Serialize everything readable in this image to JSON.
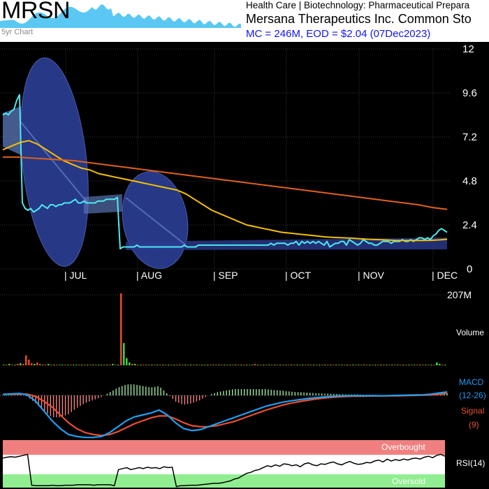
{
  "header": {
    "ticker": "MRSN",
    "mini_chart_label": "5yr Chart",
    "sector": "Health Care | Biotechnology: Pharmaceutical Prepara",
    "company": "Mersana Therapeutics Inc. Common Sto",
    "market_info": "MC = 246M, EOD = $2.04 (07Dec2023)"
  },
  "colors": {
    "background": "#000000",
    "price_line": "#4ee8f0",
    "ma_fast": "#f5c000",
    "ma_slow": "#e0601a",
    "band_fill": "#2a3b8f",
    "volume_down": "#e04a2a",
    "volume_up": "#40d040",
    "macd": "#1ea0f0",
    "signal": "#e85030",
    "hist_pos": "#9ee8a0",
    "hist_neg": "#f08080",
    "overbought": "#f08080",
    "oversold": "#90ee90"
  },
  "chart_data": {
    "type": "line",
    "price_panel": {
      "ylim": [
        0,
        12
      ],
      "yticks": [
        "12",
        "9.6",
        "7.2",
        "4.8",
        "2.4",
        "0"
      ],
      "x_labels": [
        "| JUL",
        "| AUG",
        "| SEP",
        "| OCT",
        "| NOV",
        "| DEC"
      ],
      "series": [
        {
          "key": "close",
          "values": [
            8.4,
            8.5,
            8.4,
            8.6,
            8.7,
            9.2,
            9.5,
            3.6,
            3.3,
            3.2,
            3.3,
            3.1,
            3.2,
            3.3,
            3.5,
            3.4,
            3.3,
            3.5,
            3.5,
            3.4,
            3.5,
            3.5,
            3.6,
            3.6,
            3.6,
            3.7,
            3.8,
            3.6,
            3.6,
            3.7,
            3.6,
            3.6,
            3.6,
            3.6,
            3.7,
            3.7,
            3.7,
            3.8,
            3.8,
            3.8,
            3.8,
            3.9,
            1.1,
            1.2,
            1.2,
            1.2,
            1.2,
            1.2,
            1.3,
            1.2,
            1.2,
            1.2,
            1.2,
            1.2,
            1.2,
            1.2,
            1.2,
            1.2,
            1.2,
            1.2,
            1.2,
            1.2,
            1.2,
            1.2,
            1.2,
            1.3,
            1.2,
            1.2,
            1.2,
            1.2,
            1.3,
            1.3,
            1.3,
            1.3,
            1.3,
            1.3,
            1.3,
            1.3,
            1.3,
            1.3,
            1.3,
            1.3,
            1.3,
            1.3,
            1.3,
            1.3,
            1.3,
            1.3,
            1.3,
            1.3,
            1.3,
            1.3,
            1.3,
            1.3,
            1.3,
            1.3,
            1.4,
            1.3,
            1.4,
            1.4,
            1.4,
            1.4,
            1.3,
            1.4,
            1.4,
            1.5,
            1.3,
            1.5,
            1.4,
            1.5,
            1.4,
            1.5,
            1.4,
            1.5,
            1.4,
            1.3,
            1.5,
            1.2,
            1.3,
            1.4,
            1.4,
            1.5,
            1.5,
            1.3,
            1.6,
            1.5,
            1.4,
            1.3,
            1.4,
            1.6,
            1.5,
            1.4,
            1.4,
            1.3,
            1.3,
            1.4,
            1.5,
            1.5,
            1.5,
            1.4,
            1.5,
            1.5,
            1.5,
            1.6,
            1.5,
            1.5,
            1.6,
            1.5,
            1.6,
            1.7,
            1.7,
            1.6,
            1.7,
            1.6,
            1.8,
            1.9,
            2.1,
            2.2,
            2.1,
            2.0
          ]
        },
        {
          "key": "ma_fast",
          "values": [
            6.5,
            6.7,
            6.9,
            7.0,
            6.8,
            6.5,
            6.2,
            5.9,
            5.7,
            5.5,
            5.4,
            5.2,
            5.1,
            5.0,
            4.9,
            4.8,
            4.7,
            4.6,
            4.5,
            4.4,
            4.3,
            4.1,
            3.8,
            3.5,
            3.2,
            3.0,
            2.8,
            2.6,
            2.4,
            2.3,
            2.2,
            2.1,
            2.0,
            1.95,
            1.9,
            1.85,
            1.8,
            1.75,
            1.72,
            1.7,
            1.68,
            1.65,
            1.62,
            1.6,
            1.58,
            1.56,
            1.55,
            1.55,
            1.55,
            1.56,
            1.58,
            1.62
          ]
        },
        {
          "key": "ma_slow",
          "values": [
            6.1,
            6.1,
            6.05,
            6.0,
            5.95,
            5.9,
            5.8,
            5.7,
            5.6,
            5.5,
            5.4,
            5.3,
            5.2,
            5.1,
            5.0,
            4.9,
            4.8,
            4.7,
            4.6,
            4.5,
            4.4,
            4.3,
            4.2,
            4.1,
            4.0,
            3.9,
            3.8,
            3.7,
            3.6,
            3.5,
            3.35,
            3.25
          ]
        }
      ]
    },
    "volume_panel": {
      "max_label": "207M",
      "label": "Volume",
      "values": [
        1,
        1,
        2,
        1,
        1,
        2,
        3,
        2,
        14,
        8,
        3,
        2,
        4,
        2,
        1,
        1,
        2,
        1,
        1,
        1,
        1,
        1,
        1,
        1,
        1,
        1,
        1,
        1,
        1,
        1,
        1,
        1,
        1,
        1,
        1,
        1,
        1,
        1,
        1,
        2,
        1,
        1,
        100,
        31,
        10,
        4,
        2,
        2,
        1,
        1,
        1,
        1,
        1,
        1,
        1,
        1,
        1,
        1,
        1,
        1,
        1,
        1,
        1,
        1,
        1,
        1,
        1,
        1,
        1,
        1,
        1,
        1,
        1,
        1,
        1,
        1,
        1,
        1,
        1,
        1,
        1,
        1,
        1,
        1,
        1,
        1,
        1,
        1,
        1,
        1,
        2,
        1,
        1,
        1,
        1,
        1,
        1,
        1,
        1,
        1,
        1,
        1,
        1,
        1,
        1,
        1,
        1,
        1,
        1,
        1,
        1,
        1,
        1,
        1,
        1,
        1,
        1,
        1,
        1,
        1,
        1,
        1,
        1,
        1,
        1,
        1,
        1,
        1,
        1,
        1,
        1,
        1,
        1,
        1,
        1,
        1,
        1,
        1,
        1,
        1,
        1,
        1,
        1,
        1,
        1,
        1,
        1,
        1,
        1,
        1,
        1,
        1,
        1,
        1,
        1,
        4,
        2,
        1,
        1
      ],
      "up": [
        1,
        0,
        1,
        0,
        1,
        0,
        1,
        0,
        0,
        0,
        0,
        1,
        0,
        0,
        1,
        0,
        1,
        0,
        1,
        0,
        1,
        1,
        0,
        1,
        0,
        1,
        1,
        0,
        1,
        0,
        1,
        0,
        1,
        0,
        1,
        1,
        0,
        1,
        0,
        1,
        0,
        1,
        0,
        1,
        1,
        1,
        0,
        1,
        0,
        1,
        0,
        1,
        0,
        1,
        0,
        1,
        0,
        1,
        0,
        1,
        0,
        1,
        0,
        1,
        0,
        1,
        0,
        1,
        0,
        1,
        0,
        1,
        0,
        1,
        0,
        1,
        0,
        1,
        0,
        1,
        0,
        1,
        0,
        1,
        0,
        1,
        0,
        1,
        0,
        1,
        0,
        1,
        0,
        1,
        0,
        1,
        0,
        1,
        0,
        1,
        0,
        1,
        0,
        1,
        0,
        1,
        0,
        1,
        0,
        1,
        0,
        1,
        0,
        1,
        0,
        1,
        0,
        1,
        0,
        1,
        0,
        1,
        0,
        1,
        0,
        1,
        0,
        1,
        0,
        1,
        0,
        1,
        0,
        1,
        0,
        1,
        0,
        1,
        0,
        1,
        0,
        1,
        0,
        1,
        0,
        1,
        0,
        1,
        0,
        1,
        0,
        1,
        0,
        1,
        0,
        1,
        1,
        0,
        1
      ]
    },
    "macd_panel": {
      "labels": [
        "MACD",
        "(12-26)",
        "Signal",
        "(9)"
      ],
      "macd": [
        0.05,
        0.08,
        0.1,
        0.02,
        -0.3,
        -0.8,
        -1.3,
        -1.7,
        -2.0,
        -2.1,
        -2.15,
        -2.15,
        -2.1,
        -1.9,
        -1.6,
        -1.3,
        -1.1,
        -1.0,
        -0.9,
        -0.75,
        -1.0,
        -1.4,
        -1.7,
        -1.8,
        -1.75,
        -1.6,
        -1.45,
        -1.3,
        -1.15,
        -1.0,
        -0.85,
        -0.7,
        -0.55,
        -0.45,
        -0.35,
        -0.28,
        -0.22,
        -0.16,
        -0.12,
        -0.08,
        -0.05,
        -0.03,
        -0.02,
        -0.01,
        -0.02,
        -0.01,
        -0.02,
        -0.01,
        0.0,
        0.01,
        0.02,
        0.03,
        0.06,
        0.12,
        0.18
      ],
      "signal": [
        0.05,
        0.06,
        0.07,
        0.06,
        -0.05,
        -0.3,
        -0.6,
        -1.0,
        -1.4,
        -1.7,
        -1.9,
        -2.0,
        -2.05,
        -2.0,
        -1.85,
        -1.65,
        -1.45,
        -1.3,
        -1.15,
        -1.05,
        -1.05,
        -1.2,
        -1.4,
        -1.55,
        -1.6,
        -1.6,
        -1.55,
        -1.45,
        -1.35,
        -1.2,
        -1.05,
        -0.9,
        -0.75,
        -0.62,
        -0.5,
        -0.4,
        -0.32,
        -0.25,
        -0.19,
        -0.14,
        -0.1,
        -0.07,
        -0.05,
        -0.04,
        -0.04,
        -0.03,
        -0.03,
        -0.02,
        -0.02,
        -0.01,
        0.0,
        0.01,
        0.02,
        0.05,
        0.1
      ]
    },
    "rsi_panel": {
      "label": "RSI(14)",
      "overbought_label": "Overbought",
      "oversold_label": "Oversold",
      "values": [
        62,
        64,
        65,
        64,
        66,
        68,
        70,
        5,
        4,
        4,
        4,
        4,
        5,
        4,
        4,
        5,
        5,
        5,
        6,
        6,
        6,
        6,
        5,
        6,
        6,
        6,
        6,
        4,
        38,
        40,
        42,
        38,
        40,
        42,
        40,
        43,
        41,
        42,
        40,
        44,
        42,
        43,
        2,
        4,
        4,
        5,
        5,
        5,
        6,
        7,
        8,
        9,
        9,
        10,
        12,
        14,
        18,
        20,
        25,
        30,
        32,
        36,
        38,
        42,
        46,
        44,
        48,
        45,
        50,
        49,
        46,
        48,
        44,
        50,
        52,
        48,
        46,
        50,
        49,
        52,
        54,
        50,
        48,
        52,
        55,
        51,
        49,
        50,
        53,
        52,
        56,
        58,
        54,
        60,
        56,
        59,
        57,
        60,
        58,
        61,
        62,
        60,
        64,
        66,
        63,
        68,
        70,
        66
      ]
    }
  }
}
